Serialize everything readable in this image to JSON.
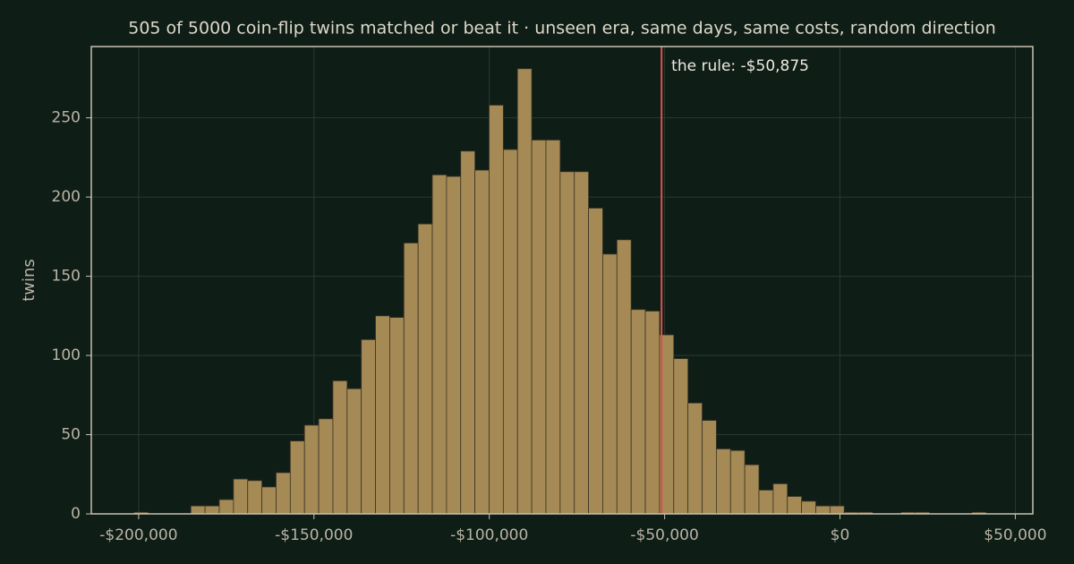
{
  "chart_data": {
    "type": "histogram",
    "title": "505 of 5000 coin-flip twins matched or beat it  ·  unseen era, same days, same costs, random direction",
    "y_label": "twins",
    "bins": [
      -201300,
      -197250,
      -193200,
      -189150,
      -185100,
      -181050,
      -177000,
      -172950,
      -168900,
      -164850,
      -160800,
      -156750,
      -152700,
      -148650,
      -144600,
      -140550,
      -136500,
      -132450,
      -128400,
      -124350,
      -120300,
      -116250,
      -112200,
      -108150,
      -104100,
      -100050,
      -96000,
      -91950,
      -87900,
      -83850,
      -79800,
      -75750,
      -71700,
      -67650,
      -63600,
      -59550,
      -55500,
      -51450,
      -47400,
      -43350,
      -39300,
      -35250,
      -31200,
      -27150,
      -23100,
      -19050,
      -15000,
      -10950,
      -6900,
      -2850,
      1200,
      5250,
      9300,
      13350,
      17400,
      21450,
      25500,
      29550,
      33600,
      37650,
      41700
    ],
    "values": [
      1,
      0,
      0,
      0,
      5,
      5,
      9,
      22,
      21,
      17,
      26,
      46,
      56,
      60,
      84,
      79,
      110,
      125,
      124,
      171,
      183,
      214,
      213,
      229,
      217,
      258,
      230,
      281,
      236,
      236,
      216,
      216,
      193,
      164,
      173,
      129,
      128,
      113,
      98,
      70,
      59,
      41,
      40,
      31,
      15,
      19,
      11,
      8,
      5,
      5,
      1,
      1,
      0,
      0,
      1,
      1,
      0,
      0,
      0,
      1
    ],
    "color": "#a58a56",
    "xlim": [
      -213500,
      55000
    ],
    "xticks": [
      {
        "value": -200000,
        "label": "-$200,000"
      },
      {
        "value": -150000,
        "label": "-$150,000"
      },
      {
        "value": -100000,
        "label": "-$100,000"
      },
      {
        "value": -50000,
        "label": "-$50,000"
      },
      {
        "value": 0,
        "label": "$0"
      },
      {
        "value": 50000,
        "label": "$50,000"
      }
    ],
    "ylim": [
      0,
      295
    ],
    "yticks": [
      0,
      50,
      100,
      150,
      200,
      250
    ],
    "grid": true,
    "marker_line": {
      "value": -50875,
      "label": "the rule: -$50,875",
      "color": "#d9534f"
    }
  }
}
